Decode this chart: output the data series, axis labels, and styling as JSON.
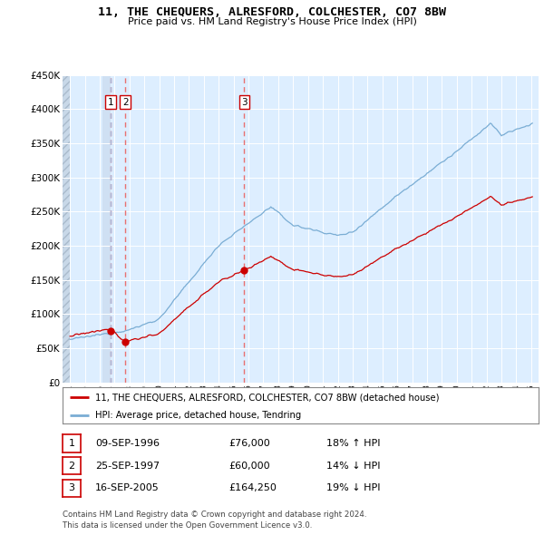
{
  "title": "11, THE CHEQUERS, ALRESFORD, COLCHESTER, CO7 8BW",
  "subtitle": "Price paid vs. HM Land Registry's House Price Index (HPI)",
  "legend_label_red": "11, THE CHEQUERS, ALRESFORD, COLCHESTER, CO7 8BW (detached house)",
  "legend_label_blue": "HPI: Average price, detached house, Tendring",
  "table": [
    {
      "num": "1",
      "date": "09-SEP-1996",
      "price": "£76,000",
      "hpi": "18% ↑ HPI"
    },
    {
      "num": "2",
      "date": "25-SEP-1997",
      "price": "£60,000",
      "hpi": "14% ↓ HPI"
    },
    {
      "num": "3",
      "date": "16-SEP-2005",
      "price": "£164,250",
      "hpi": "19% ↓ HPI"
    }
  ],
  "sale_dates_year": [
    1996.72,
    1997.72,
    2005.72
  ],
  "sale_prices": [
    76000,
    60000,
    164250
  ],
  "sale_labels": [
    "1",
    "2",
    "3"
  ],
  "footnote1": "Contains HM Land Registry data © Crown copyright and database right 2024.",
  "footnote2": "This data is licensed under the Open Government Licence v3.0.",
  "red_color": "#cc0000",
  "blue_color": "#7aadd4",
  "dashed_red_color": "#e87070",
  "dashed_blue_color": "#aaccee",
  "background_color": "#ffffff",
  "plot_bg_color": "#ddeeff",
  "grid_color": "#ffffff",
  "hatch_bg": "#c8d8e8",
  "ylim": [
    0,
    450000
  ],
  "xlim": [
    1993.5,
    2025.5
  ]
}
